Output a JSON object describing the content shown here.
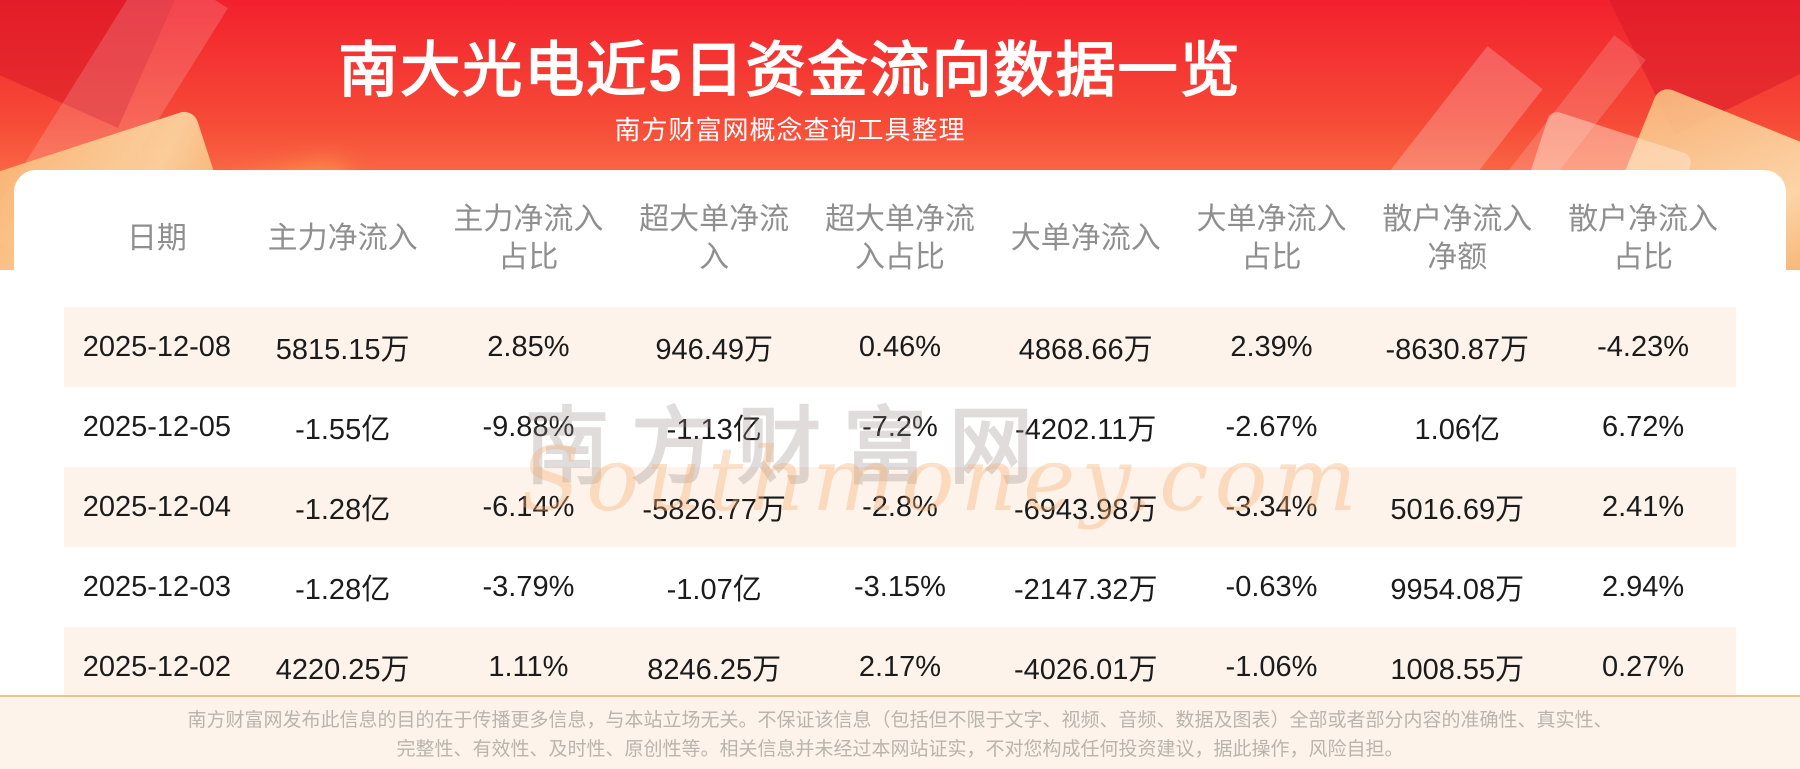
{
  "banner": {
    "title": "南大光电近5日资金流向数据一览",
    "subtitle": "南方财富网概念查询工具整理"
  },
  "watermark": {
    "cn": "南方财富网",
    "en": "Southmoney.com"
  },
  "chart_data": {
    "type": "table",
    "title": "南大光电近5日资金流向数据一览",
    "columns": [
      "日期",
      "主力净流入",
      "主力净流入\n占比",
      "超大单净流\n入",
      "超大单净流\n入占比",
      "大单净流入",
      "大单净流入\n占比",
      "散户净流入\n净额",
      "散户净流入\n占比"
    ],
    "rows": [
      [
        "2025-12-08",
        "5815.15万",
        "2.85%",
        "946.49万",
        "0.46%",
        "4868.66万",
        "2.39%",
        "-8630.87万",
        "-4.23%"
      ],
      [
        "2025-12-05",
        "-1.55亿",
        "-9.88%",
        "-1.13亿",
        "-7.2%",
        "-4202.11万",
        "-2.67%",
        "1.06亿",
        "6.72%"
      ],
      [
        "2025-12-04",
        "-1.28亿",
        "-6.14%",
        "-5826.77万",
        "-2.8%",
        "-6943.98万",
        "-3.34%",
        "5016.69万",
        "2.41%"
      ],
      [
        "2025-12-03",
        "-1.28亿",
        "-3.79%",
        "-1.07亿",
        "-3.15%",
        "-2147.32万",
        "-0.63%",
        "9954.08万",
        "2.94%"
      ],
      [
        "2025-12-02",
        "4220.25万",
        "1.11%",
        "8246.25万",
        "2.17%",
        "-4026.01万",
        "-1.06%",
        "1008.55万",
        "0.27%"
      ]
    ]
  },
  "footer": {
    "line1": "南方财富网发布此信息的目的在于传播更多信息，与本站立场无关。不保证该信息（包括但不限于文字、视频、音频、数据及图表）全部或者部分内容的准确性、真实性、",
    "line2": "完整性、有效性、及时性、原创性等。相关信息并未经过本网站证实，不对您构成任何投资建议，据此操作，风险自担。"
  },
  "colors": {
    "banner_top": "#f2212d",
    "banner_bottom": "#fc9360",
    "row_alt": "#fdf3ea",
    "footer_bg": "#fdf3ea",
    "footer_border": "#f2c18a",
    "header_text": "#8f8f8f",
    "data_text": "#1b1b1b"
  }
}
